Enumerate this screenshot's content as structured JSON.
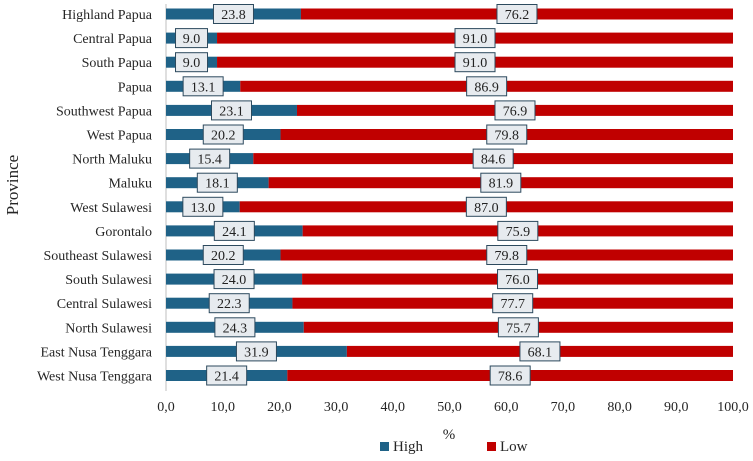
{
  "chart_data": {
    "type": "bar",
    "orientation": "horizontal",
    "stacked": true,
    "categories": [
      "Highland Papua",
      "Central Papua",
      "South Papua",
      "Papua",
      "Southwest Papua",
      "West Papua",
      "North Maluku",
      "Maluku",
      "West Sulawesi",
      "Gorontalo",
      "Southeast Sulawesi",
      "South Sulawesi",
      "Central Sulawesi",
      "North Sulawesi",
      "East Nusa Tenggara",
      "West Nusa Tenggara"
    ],
    "series": [
      {
        "name": "High",
        "color": "#1f6287",
        "values": [
          23.8,
          9.0,
          9.0,
          13.1,
          23.1,
          20.2,
          15.4,
          18.1,
          13.0,
          24.1,
          20.2,
          24.0,
          22.3,
          24.3,
          31.9,
          21.4
        ],
        "labels": [
          "23.8",
          "9.0",
          "9.0",
          "13.1",
          "23.1",
          "20.2",
          "15.4",
          "18.1",
          "13.0",
          "24.1",
          "20.2",
          "24.0",
          "22.3",
          "24.3",
          "31.9",
          "21.4"
        ]
      },
      {
        "name": "Low",
        "color": "#c00000",
        "values": [
          76.2,
          91.0,
          91.0,
          86.9,
          76.9,
          79.8,
          84.6,
          81.9,
          87.0,
          75.9,
          79.8,
          76.0,
          77.7,
          75.7,
          68.1,
          78.6
        ],
        "labels": [
          "76.2",
          "91.0",
          "91.0",
          "86.9",
          "76.9",
          "79.8",
          "84.6",
          "81.9",
          "87.0",
          "75.9",
          "79.8",
          "76.0",
          "77.7",
          "75.7",
          "68.1",
          "78.6"
        ]
      }
    ],
    "xlabel": "%",
    "ylabel": "Province",
    "xlim": [
      0,
      100
    ],
    "xticks": [
      0,
      10,
      20,
      30,
      40,
      50,
      60,
      70,
      80,
      90,
      100
    ],
    "xtick_labels": [
      "0,0",
      "10,0",
      "20,0",
      "30,0",
      "40,0",
      "50,0",
      "60,0",
      "70,0",
      "80,0",
      "90,0",
      "100,0"
    ],
    "grid": false,
    "legend_position": "bottom"
  }
}
